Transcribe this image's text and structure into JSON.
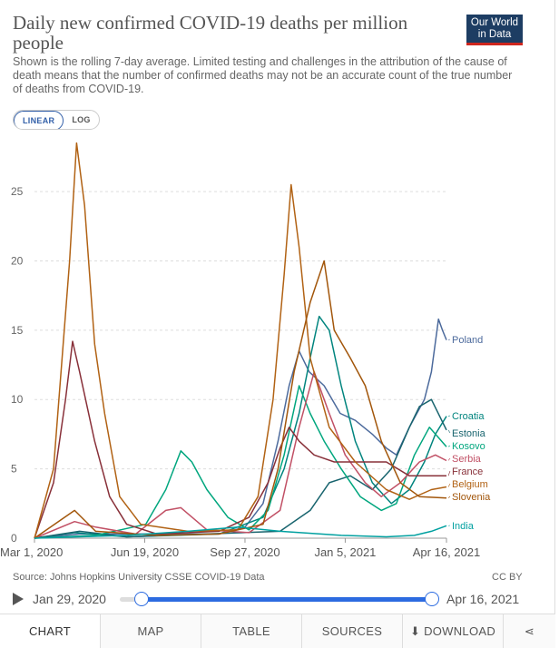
{
  "header": {
    "title": "Daily new confirmed COVID-19 deaths per million people",
    "subtitle": "Shown is the rolling 7-day average. Limited testing and challenges in the attribution of the cause of death means that the number of confirmed deaths may not be an accurate count of the true number of deaths from COVID-19.",
    "logo_line1": "Our World",
    "logo_line2": "in Data"
  },
  "toggle": {
    "linear": "LINEAR",
    "log": "LOG"
  },
  "footer": {
    "source": "Source: Johns Hopkins University CSSE COVID-19 Data",
    "license": "CC BY"
  },
  "timeline": {
    "start": "Jan 29, 2020",
    "end": "Apr 16, 2021"
  },
  "tabs": {
    "chart": "CHART",
    "map": "MAP",
    "table": "TABLE",
    "sources": "SOURCES",
    "download": "DOWNLOAD"
  },
  "chart_data": {
    "type": "line",
    "x_ticks": [
      "Mar 1, 2020",
      "Jun 19, 2020",
      "Sep 27, 2020",
      "Jan 5, 2021",
      "Apr 16, 2021"
    ],
    "x_domain": [
      "2020-03-01",
      "2021-04-16"
    ],
    "y_ticks": [
      0,
      5,
      10,
      15,
      20,
      25
    ],
    "ylim": [
      0,
      29
    ],
    "grid": "horizontal-dashed",
    "legend": "inline-right",
    "series": [
      {
        "name": "Poland",
        "color": "#4c6a9c",
        "points": [
          [
            "2020-03-01",
            0
          ],
          [
            "2020-04-15",
            0.3
          ],
          [
            "2020-06-01",
            0.3
          ],
          [
            "2020-09-01",
            0.3
          ],
          [
            "2020-09-27",
            0.8
          ],
          [
            "2020-10-15",
            2.5
          ],
          [
            "2020-10-30",
            7
          ],
          [
            "2020-11-10",
            11
          ],
          [
            "2020-11-20",
            13.5
          ],
          [
            "2020-11-30",
            12
          ],
          [
            "2020-12-15",
            11
          ],
          [
            "2020-12-31",
            9
          ],
          [
            "2021-01-15",
            8.5
          ],
          [
            "2021-02-01",
            7.5
          ],
          [
            "2021-02-15",
            6.5
          ],
          [
            "2021-02-25",
            6
          ],
          [
            "2021-03-10",
            8
          ],
          [
            "2021-03-25",
            10
          ],
          [
            "2021-04-01",
            12
          ],
          [
            "2021-04-08",
            15.8
          ],
          [
            "2021-04-12",
            15
          ],
          [
            "2021-04-16",
            14.3
          ]
        ]
      },
      {
        "name": "Croatia",
        "color": "#00847e",
        "points": [
          [
            "2020-03-01",
            0
          ],
          [
            "2020-04-10",
            0.4
          ],
          [
            "2020-06-01",
            0.1
          ],
          [
            "2020-09-01",
            0.3
          ],
          [
            "2020-10-15",
            1.5
          ],
          [
            "2020-11-05",
            5
          ],
          [
            "2020-11-20",
            9
          ],
          [
            "2020-12-01",
            13
          ],
          [
            "2020-12-10",
            16
          ],
          [
            "2020-12-20",
            15
          ],
          [
            "2021-01-01",
            11
          ],
          [
            "2021-01-15",
            7
          ],
          [
            "2021-02-01",
            4
          ],
          [
            "2021-02-20",
            2.5
          ],
          [
            "2021-03-10",
            3.5
          ],
          [
            "2021-03-25",
            5.5
          ],
          [
            "2021-04-05",
            7.5
          ],
          [
            "2021-04-16",
            8.8
          ]
        ]
      },
      {
        "name": "Estonia",
        "color": "#18646e",
        "points": [
          [
            "2020-03-01",
            0
          ],
          [
            "2020-04-15",
            0.5
          ],
          [
            "2020-06-01",
            0.1
          ],
          [
            "2020-11-01",
            0.5
          ],
          [
            "2020-12-01",
            2
          ],
          [
            "2020-12-20",
            4
          ],
          [
            "2021-01-10",
            4.5
          ],
          [
            "2021-02-01",
            3.5
          ],
          [
            "2021-02-20",
            5
          ],
          [
            "2021-03-10",
            8
          ],
          [
            "2021-03-20",
            9.5
          ],
          [
            "2021-04-01",
            10
          ],
          [
            "2021-04-16",
            7.8
          ]
        ]
      },
      {
        "name": "Kosovo",
        "color": "#00a67e",
        "points": [
          [
            "2020-03-01",
            0
          ],
          [
            "2020-05-01",
            0.2
          ],
          [
            "2020-06-20",
            1
          ],
          [
            "2020-07-10",
            3.5
          ],
          [
            "2020-07-25",
            6.3
          ],
          [
            "2020-08-05",
            5.5
          ],
          [
            "2020-08-20",
            3.5
          ],
          [
            "2020-09-10",
            1.5
          ],
          [
            "2020-10-01",
            0.6
          ],
          [
            "2020-10-20",
            2
          ],
          [
            "2020-11-05",
            6
          ],
          [
            "2020-11-20",
            11
          ],
          [
            "2020-12-01",
            9
          ],
          [
            "2020-12-15",
            7
          ],
          [
            "2021-01-01",
            5
          ],
          [
            "2021-01-20",
            3
          ],
          [
            "2021-02-10",
            2
          ],
          [
            "2021-02-25",
            2.5
          ],
          [
            "2021-03-15",
            6
          ],
          [
            "2021-03-30",
            8
          ],
          [
            "2021-04-16",
            6.6
          ]
        ]
      },
      {
        "name": "Serbia",
        "color": "#c15065",
        "points": [
          [
            "2020-03-01",
            0
          ],
          [
            "2020-04-10",
            1.2
          ],
          [
            "2020-05-01",
            0.8
          ],
          [
            "2020-06-10",
            0.3
          ],
          [
            "2020-07-10",
            2
          ],
          [
            "2020-07-25",
            2.2
          ],
          [
            "2020-08-20",
            0.6
          ],
          [
            "2020-10-01",
            0.4
          ],
          [
            "2020-11-01",
            2
          ],
          [
            "2020-11-20",
            8
          ],
          [
            "2020-12-05",
            12
          ],
          [
            "2020-12-20",
            9
          ],
          [
            "2021-01-05",
            6
          ],
          [
            "2021-01-25",
            4
          ],
          [
            "2021-02-10",
            3
          ],
          [
            "2021-03-01",
            4
          ],
          [
            "2021-03-20",
            5.5
          ],
          [
            "2021-04-05",
            6
          ],
          [
            "2021-04-16",
            5.6
          ]
        ]
      },
      {
        "name": "France",
        "color": "#883039",
        "points": [
          [
            "2020-03-01",
            0
          ],
          [
            "2020-03-20",
            4
          ],
          [
            "2020-04-01",
            10
          ],
          [
            "2020-04-08",
            14.2
          ],
          [
            "2020-04-15",
            12
          ],
          [
            "2020-04-30",
            7
          ],
          [
            "2020-05-15",
            3
          ],
          [
            "2020-06-01",
            1
          ],
          [
            "2020-07-01",
            0.3
          ],
          [
            "2020-09-01",
            0.5
          ],
          [
            "2020-10-01",
            1.5
          ],
          [
            "2020-10-20",
            4
          ],
          [
            "2020-11-01",
            6.5
          ],
          [
            "2020-11-10",
            8
          ],
          [
            "2020-11-20",
            7
          ],
          [
            "2020-12-05",
            6
          ],
          [
            "2020-12-25",
            5.5
          ],
          [
            "2021-01-15",
            5.5
          ],
          [
            "2021-02-15",
            5.5
          ],
          [
            "2021-03-10",
            4.5
          ],
          [
            "2021-03-25",
            4.5
          ],
          [
            "2021-04-16",
            4.5
          ]
        ]
      },
      {
        "name": "Belgium",
        "color": "#b16214",
        "points": [
          [
            "2020-03-01",
            0
          ],
          [
            "2020-03-20",
            5
          ],
          [
            "2020-04-05",
            20
          ],
          [
            "2020-04-12",
            28.5
          ],
          [
            "2020-04-20",
            24
          ],
          [
            "2020-04-30",
            14
          ],
          [
            "2020-05-10",
            9
          ],
          [
            "2020-05-25",
            3
          ],
          [
            "2020-06-15",
            1
          ],
          [
            "2020-08-01",
            0.5
          ],
          [
            "2020-09-20",
            0.6
          ],
          [
            "2020-10-10",
            3
          ],
          [
            "2020-10-25",
            10
          ],
          [
            "2020-11-05",
            19
          ],
          [
            "2020-11-12",
            25.5
          ],
          [
            "2020-11-20",
            21
          ],
          [
            "2020-12-01",
            13
          ],
          [
            "2020-12-20",
            8
          ],
          [
            "2021-01-15",
            5.5
          ],
          [
            "2021-02-15",
            3.5
          ],
          [
            "2021-03-10",
            2.8
          ],
          [
            "2021-04-01",
            3.5
          ],
          [
            "2021-04-16",
            3.7
          ]
        ]
      },
      {
        "name": "Slovenia",
        "color": "#a2560b",
        "points": [
          [
            "2020-03-01",
            0
          ],
          [
            "2020-04-10",
            2
          ],
          [
            "2020-05-01",
            0.5
          ],
          [
            "2020-07-01",
            0.2
          ],
          [
            "2020-09-01",
            0.3
          ],
          [
            "2020-10-15",
            1
          ],
          [
            "2020-10-30",
            5
          ],
          [
            "2020-11-15",
            12
          ],
          [
            "2020-12-01",
            17
          ],
          [
            "2020-12-15",
            20
          ],
          [
            "2020-12-25",
            15
          ],
          [
            "2021-01-10",
            13
          ],
          [
            "2021-01-25",
            11
          ],
          [
            "2021-02-10",
            7
          ],
          [
            "2021-03-01",
            4
          ],
          [
            "2021-03-20",
            3
          ],
          [
            "2021-04-16",
            2.9
          ]
        ]
      },
      {
        "name": "India",
        "color": "#00a0a0",
        "points": [
          [
            "2020-03-01",
            0
          ],
          [
            "2020-06-01",
            0.2
          ],
          [
            "2020-08-01",
            0.5
          ],
          [
            "2020-09-20",
            0.8
          ],
          [
            "2020-11-01",
            0.5
          ],
          [
            "2021-01-01",
            0.2
          ],
          [
            "2021-02-15",
            0.1
          ],
          [
            "2021-03-15",
            0.2
          ],
          [
            "2021-04-01",
            0.5
          ],
          [
            "2021-04-16",
            0.9
          ]
        ]
      }
    ]
  }
}
